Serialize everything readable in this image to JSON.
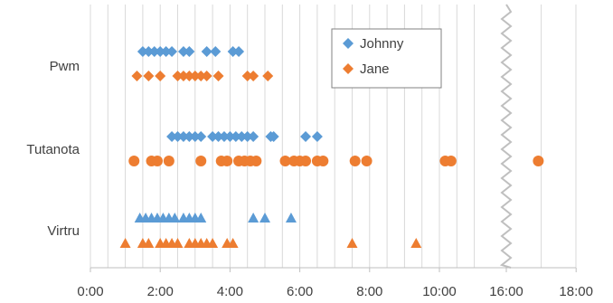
{
  "chart_data": {
    "type": "scatter",
    "x_tick_labels": [
      "0:00",
      "2:00",
      "4:00",
      "6:00",
      "8:00",
      "10:00",
      "16:00",
      "18:00"
    ],
    "categories": [
      "Pwm",
      "Tutanota",
      "Virtru"
    ],
    "axis_break": "between 10:00 and 16:00 (compressed)",
    "grid": "vertical",
    "legend_position": "top-right",
    "series": [
      {
        "name": "Johnny",
        "color": "#5B9BD5",
        "marker": "diamond",
        "points": {
          "Pwm": [
            "1:30",
            "1:40",
            "1:50",
            "2:00",
            "2:10",
            "2:20",
            "2:40",
            "2:50",
            "3:20",
            "3:35",
            "4:05",
            "4:15"
          ],
          "Tutanota": [
            "2:20",
            "2:30",
            "2:40",
            "2:50",
            "3:00",
            "3:10",
            "3:30",
            "3:40",
            "3:50",
            "4:00",
            "4:10",
            "4:20",
            "4:30",
            "4:40",
            "5:10",
            "5:15",
            "6:10",
            "6:30"
          ],
          "Virtru": [
            "1:25",
            "1:35",
            "1:45",
            "1:55",
            "2:05",
            "2:15",
            "2:25",
            "2:40",
            "2:50",
            "3:00",
            "3:10",
            "4:40",
            "5:00",
            "5:45"
          ]
        }
      },
      {
        "name": "Jane",
        "color": "#ED7D31",
        "marker": "mixed",
        "points": {
          "Pwm": [
            "1:20",
            "1:40",
            "2:00",
            "2:30",
            "2:40",
            "2:50",
            "3:00",
            "3:10",
            "3:20",
            "3:40",
            "4:30",
            "4:40",
            "5:05"
          ],
          "Tutanota": [
            "1:15",
            "1:45",
            "1:55",
            "2:15",
            "3:10",
            "3:45",
            "3:55",
            "4:15",
            "4:25",
            "4:35",
            "4:45",
            "5:35",
            "5:50",
            "6:00",
            "6:10",
            "6:30",
            "6:40",
            "7:35",
            "7:55",
            "10:10",
            "10:20",
            "16:55"
          ],
          "Virtru": [
            "1:00",
            "1:30",
            "1:40",
            "2:00",
            "2:10",
            "2:20",
            "2:30",
            "2:50",
            "3:00",
            "3:10",
            "3:20",
            "3:30",
            "3:55",
            "4:05",
            "7:30",
            "9:20"
          ]
        }
      }
    ]
  }
}
